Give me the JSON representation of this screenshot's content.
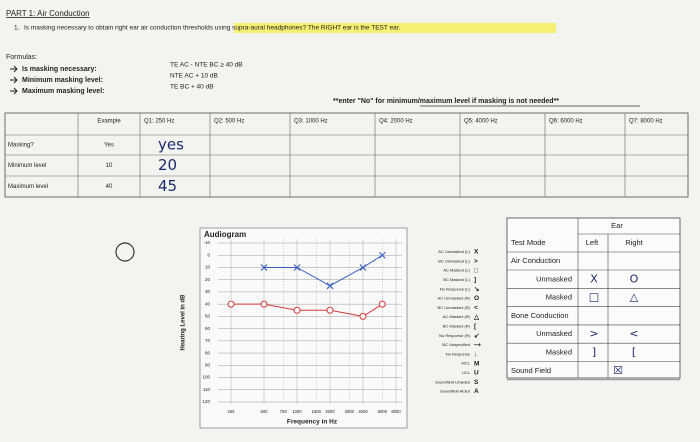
{
  "header": {
    "title": "PART 1: Air Conduction",
    "number": "1.",
    "question": "Is masking necessary to obtain right ear air conduction thresholds using supra-aural headphones? The RIGHT ear is the TEST ear."
  },
  "formulas": {
    "heading": "Formulas:",
    "items": [
      {
        "label": "Is masking necessary:",
        "formula": "TE AC - NTE BC ≥ 40 dB"
      },
      {
        "label": "Minimum masking level:",
        "formula": "NTE AC + 10 dB"
      },
      {
        "label": "Maximum masking level:",
        "formula": "TE BC + 40 dB"
      }
    ]
  },
  "note": "**enter \"No\" for minimum/maximum level if masking is not needed**",
  "table": {
    "header": [
      "Example",
      "Q1: 250 Hz",
      "Q2: 500 Hz",
      "Q3: 1000 Hz",
      "Q4: 2000 Hz",
      "Q5: 4000 Hz",
      "Q6: 6000 Hz",
      "Q7: 8000 Hz"
    ],
    "rows": [
      [
        "Masking?",
        "Yes",
        "yes"
      ],
      [
        "Minimum level",
        "10",
        "20"
      ],
      [
        "Maximum level",
        "40",
        "45"
      ]
    ]
  },
  "audiogram": {
    "title": "Audiogram",
    "y_label": "Hearing Level in dB",
    "x_label": "Frequency in Hz",
    "xscale": "log",
    "xlim": [
      250,
      8000
    ],
    "xticks": [
      250,
      500,
      750,
      1000,
      1500,
      2000,
      3000,
      4000,
      6000,
      8000
    ],
    "ylim": [
      -10,
      120
    ],
    "yticks": [
      -10,
      0,
      10,
      20,
      30,
      40,
      50,
      60,
      70,
      80,
      90,
      100,
      110,
      120
    ],
    "grid": true,
    "series": [
      {
        "marker": "circle",
        "color": "#d23a3a",
        "x": [
          250,
          500,
          1000,
          2000,
          4000,
          6000
        ],
        "values": [
          40,
          40,
          45,
          45,
          50,
          40
        ]
      },
      {
        "marker": "cross",
        "color": "#3b5fc0",
        "x": [
          500,
          1000,
          2000,
          4000,
          6000
        ],
        "values": [
          10,
          10,
          25,
          10,
          0
        ]
      }
    ]
  },
  "legend": [
    {
      "label": "AC Unmasked (L)",
      "symbol": "X"
    },
    {
      "label": "BC Unmasked (L)",
      "symbol": ">"
    },
    {
      "label": "AC Masked (L)",
      "symbol": "□"
    },
    {
      "label": "BC Masked (L)",
      "symbol": "]"
    },
    {
      "label": "No Response (L)",
      "symbol": "↘"
    },
    {
      "label": "AC Unmasked (R)",
      "symbol": "O"
    },
    {
      "label": "BC Unmasked (R)",
      "symbol": "<"
    },
    {
      "label": "AC Masked (R)",
      "symbol": "△"
    },
    {
      "label": "BC Masked (R)",
      "symbol": "["
    },
    {
      "label": "No Response (R)",
      "symbol": "↙"
    },
    {
      "label": "BC Unspecified",
      "symbol": "⤍"
    },
    {
      "label": "No Response",
      "symbol": "↓"
    },
    {
      "label": "MCL",
      "symbol": "M"
    },
    {
      "label": "UCL",
      "symbol": "U"
    },
    {
      "label": "Soundfield Unaided",
      "symbol": "S"
    },
    {
      "label": "Soundfield Aided",
      "symbol": "A"
    }
  ],
  "ear_table": {
    "ear": "Ear",
    "test_mode": "Test Mode",
    "left": "Left",
    "right": "Right",
    "rows": [
      {
        "section": "Air Conduction"
      },
      {
        "label": "Unmasked",
        "left": "X",
        "right": "O"
      },
      {
        "label": "Masked",
        "left": "□",
        "right": "△"
      },
      {
        "section": "Bone Conduction"
      },
      {
        "label": "Unmasked",
        "left": ">",
        "right": "<"
      },
      {
        "label": "Masked",
        "left": "]",
        "right": "["
      },
      {
        "label": "Sound Field",
        "left": "☒"
      }
    ]
  }
}
